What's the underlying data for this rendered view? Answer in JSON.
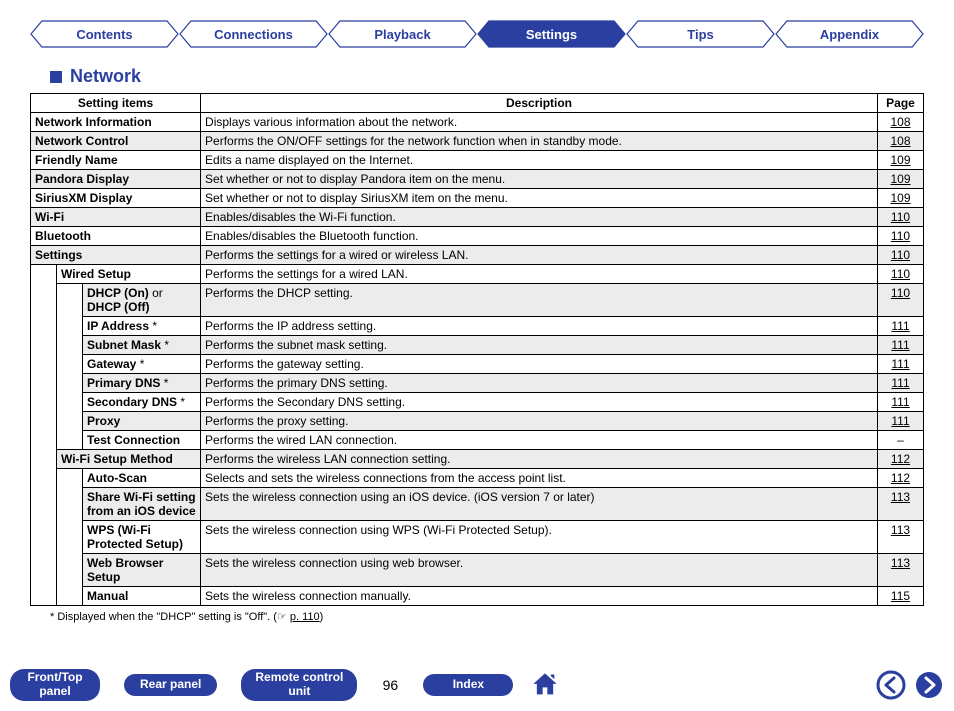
{
  "nav": {
    "tabs": [
      {
        "label": "Contents",
        "active": false
      },
      {
        "label": "Connections",
        "active": false
      },
      {
        "label": "Playback",
        "active": false
      },
      {
        "label": "Settings",
        "active": true
      },
      {
        "label": "Tips",
        "active": false
      },
      {
        "label": "Appendix",
        "active": false
      }
    ],
    "colors": {
      "primary": "#2b3fa0",
      "bg": "#ffffff"
    }
  },
  "section": {
    "title": "Network",
    "columns": [
      "Setting items",
      "Description",
      "Page"
    ]
  },
  "rows": [
    {
      "indent": 0,
      "shaded": false,
      "item_html": "<b>Network Information</b>",
      "desc": "Displays various information about the network.",
      "page": "108"
    },
    {
      "indent": 0,
      "shaded": true,
      "item_html": "<b>Network Control</b>",
      "desc": "Performs the ON/OFF settings for the network function when in standby mode.",
      "page": "108"
    },
    {
      "indent": 0,
      "shaded": false,
      "item_html": "<b>Friendly Name</b>",
      "desc": "Edits a name displayed on the Internet.",
      "page": "109"
    },
    {
      "indent": 0,
      "shaded": true,
      "item_html": "<b>Pandora Display</b>",
      "desc": "Set whether or not to display Pandora item on the menu.",
      "page": "109"
    },
    {
      "indent": 0,
      "shaded": false,
      "item_html": "<b>SiriusXM Display</b>",
      "desc": "Set whether or not to display SiriusXM item on the menu.",
      "page": "109"
    },
    {
      "indent": 0,
      "shaded": true,
      "item_html": "<b>Wi-Fi</b>",
      "desc": "Enables/disables the Wi-Fi function.",
      "page": "110"
    },
    {
      "indent": 0,
      "shaded": false,
      "item_html": "<b>Bluetooth</b>",
      "desc": "Enables/disables the Bluetooth function.",
      "page": "110"
    },
    {
      "indent": 0,
      "shaded": true,
      "item_html": "<b>Settings</b>",
      "desc": "Performs the settings for a wired or wireless LAN.",
      "page": "110"
    },
    {
      "indent": 1,
      "shaded": false,
      "item_html": "<b>Wired Setup</b>",
      "desc": "Performs the settings for a wired LAN.",
      "page": "110"
    },
    {
      "indent": 2,
      "shaded": true,
      "item_html": "<b>DHCP (On)</b> or <b>DHCP (Off)</b>",
      "desc": "Performs the DHCP setting.",
      "page": "110"
    },
    {
      "indent": 2,
      "shaded": false,
      "item_html": "<b>IP Address </b>*",
      "desc": "Performs the IP address setting.",
      "page": "111"
    },
    {
      "indent": 2,
      "shaded": true,
      "item_html": "<b>Subnet Mask </b>*",
      "desc": "Performs the subnet mask setting.",
      "page": "111"
    },
    {
      "indent": 2,
      "shaded": false,
      "item_html": "<b>Gateway </b>*",
      "desc": "Performs the gateway setting.",
      "page": "111"
    },
    {
      "indent": 2,
      "shaded": true,
      "item_html": "<b>Primary DNS </b>*",
      "desc": "Performs the primary DNS setting.",
      "page": "111"
    },
    {
      "indent": 2,
      "shaded": false,
      "item_html": "<b>Secondary DNS </b>*",
      "desc": "Performs the Secondary DNS setting.",
      "page": "111"
    },
    {
      "indent": 2,
      "shaded": true,
      "item_html": "<b>Proxy</b>",
      "desc": "Performs the proxy setting.",
      "page": "111"
    },
    {
      "indent": 2,
      "shaded": false,
      "item_html": "<b>Test Connection</b>",
      "desc": "Performs the wired LAN connection.",
      "page": "–"
    },
    {
      "indent": 1,
      "shaded": true,
      "item_html": "<b>Wi-Fi Setup Method</b>",
      "desc": "Performs the wireless LAN connection setting.",
      "page": "112"
    },
    {
      "indent": 2,
      "shaded": false,
      "item_html": "<b>Auto-Scan</b>",
      "desc": "Selects and sets the wireless connections from the access point list.",
      "page": "112"
    },
    {
      "indent": 2,
      "shaded": true,
      "item_html": "<b>Share Wi-Fi setting from an iOS device</b>",
      "desc": "Sets the wireless connection using an iOS device. (iOS version 7 or later)",
      "page": "113"
    },
    {
      "indent": 2,
      "shaded": false,
      "item_html": "<b>WPS (Wi-Fi Protected Setup)</b>",
      "desc": "Sets the wireless connection using WPS (Wi-Fi Protected Setup).",
      "page": "113"
    },
    {
      "indent": 2,
      "shaded": true,
      "item_html": "<b>Web Browser Setup</b>",
      "desc": "Sets the wireless connection using web browser.",
      "page": "113"
    },
    {
      "indent": 2,
      "shaded": false,
      "item_html": "<b>Manual</b>",
      "desc": "Sets the wireless connection manually.",
      "page": "115"
    }
  ],
  "footnote": {
    "prefix": "* Displayed when the \"DHCP\" setting is \"Off\".  (☞ ",
    "page_link": "p. 110",
    "suffix": ")"
  },
  "footer": {
    "buttons": [
      {
        "id": "front-top-panel",
        "lines": [
          "Front/Top",
          "panel"
        ]
      },
      {
        "id": "rear-panel",
        "lines": [
          "Rear panel"
        ]
      },
      {
        "id": "remote-control",
        "lines": [
          "Remote control",
          "unit"
        ]
      }
    ],
    "page_number": "96",
    "index_label": "Index"
  }
}
